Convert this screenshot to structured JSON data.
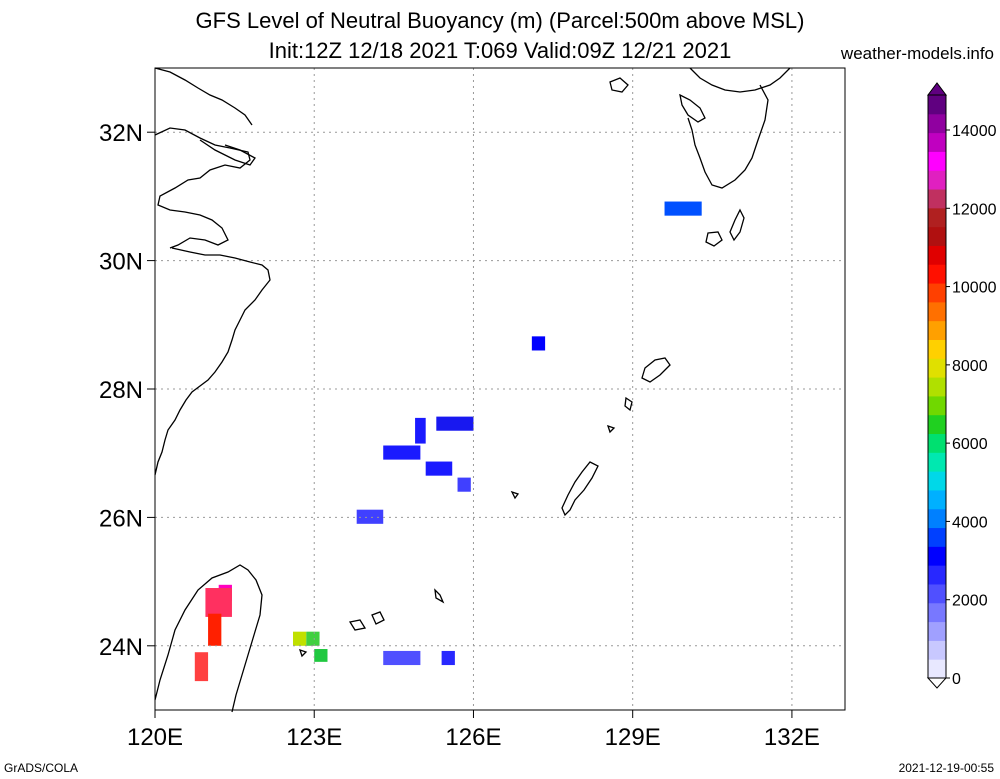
{
  "title": {
    "line1": "GFS Level of Neutral Buoyancy (m) (Parcel:500m above MSL)",
    "line2": "Init:12Z 12/18 2021 T:069 Valid:09Z 12/21 2021"
  },
  "site": "weather-models.info",
  "footer": {
    "left": "GrADS/COLA",
    "right": "2021-12-19-00:55"
  },
  "axes": {
    "lon_labels": [
      "120E",
      "123E",
      "126E",
      "129E",
      "132E"
    ],
    "lat_labels": [
      "32N",
      "30N",
      "28N",
      "26N",
      "24N"
    ]
  },
  "colorbar": {
    "labels": [
      "14000",
      "12000",
      "10000",
      "8000",
      "6000",
      "4000",
      "2000",
      "0"
    ],
    "colors": [
      "#e8e8ff",
      "#c8c8ff",
      "#a0a0ff",
      "#7878ff",
      "#5050ff",
      "#2828ff",
      "#0000ff",
      "#0040ff",
      "#0080ff",
      "#00b0ff",
      "#00d8e8",
      "#00e8b0",
      "#00e070",
      "#20d020",
      "#70d800",
      "#b0e000",
      "#e0e000",
      "#ffd000",
      "#ffa000",
      "#ff7000",
      "#ff4000",
      "#ff1000",
      "#e00000",
      "#b01010",
      "#b02020",
      "#c03060",
      "#e020c0",
      "#ff00ff",
      "#c000c0",
      "#9000a0",
      "#600080"
    ]
  },
  "buoyancy_cells": [
    {
      "lon": 129.6,
      "lat": 30.7,
      "w": 0.7,
      "h": 0.22,
      "color": "#0050ff"
    },
    {
      "lon": 127.1,
      "lat": 28.6,
      "w": 0.25,
      "h": 0.22,
      "color": "#0000ff"
    },
    {
      "lon": 125.3,
      "lat": 27.35,
      "w": 0.7,
      "h": 0.22,
      "color": "#1818f0"
    },
    {
      "lon": 124.3,
      "lat": 26.9,
      "w": 0.7,
      "h": 0.22,
      "color": "#1a1aff"
    },
    {
      "lon": 124.9,
      "lat": 27.15,
      "w": 0.2,
      "h": 0.4,
      "color": "#1a1aff"
    },
    {
      "lon": 125.1,
      "lat": 26.65,
      "w": 0.5,
      "h": 0.22,
      "color": "#1a1aff"
    },
    {
      "lon": 125.7,
      "lat": 26.4,
      "w": 0.25,
      "h": 0.22,
      "color": "#4040ff"
    },
    {
      "lon": 123.8,
      "lat": 25.9,
      "w": 0.5,
      "h": 0.22,
      "color": "#4040ff"
    },
    {
      "lon": 124.3,
      "lat": 23.7,
      "w": 0.7,
      "h": 0.22,
      "color": "#5050ff"
    },
    {
      "lon": 125.4,
      "lat": 23.7,
      "w": 0.25,
      "h": 0.22,
      "color": "#2828ff"
    },
    {
      "lon": 122.6,
      "lat": 24.0,
      "w": 0.25,
      "h": 0.22,
      "color": "#c0e000"
    },
    {
      "lon": 122.85,
      "lat": 24.0,
      "w": 0.25,
      "h": 0.22,
      "color": "#40d040"
    },
    {
      "lon": 123.0,
      "lat": 23.75,
      "w": 0.25,
      "h": 0.2,
      "color": "#20c840"
    },
    {
      "lon": 121.2,
      "lat": 24.7,
      "w": 0.25,
      "h": 0.25,
      "color": "#ff00c0"
    },
    {
      "lon": 120.95,
      "lat": 24.45,
      "w": 0.5,
      "h": 0.45,
      "color": "#ff3060"
    },
    {
      "lon": 121.0,
      "lat": 24.0,
      "w": 0.25,
      "h": 0.5,
      "color": "#ff2000"
    },
    {
      "lon": 120.75,
      "lat": 23.45,
      "w": 0.25,
      "h": 0.45,
      "color": "#ff4040"
    }
  ]
}
